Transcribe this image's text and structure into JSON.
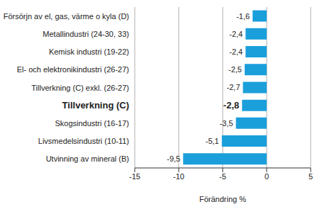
{
  "chart_data": {
    "type": "bar",
    "orientation": "horizontal",
    "categories": [
      "Försörjn av el, gas, värme o kyla (D)",
      "Metallindustri (24-30, 33)",
      "Kemisk industri (19-22)",
      "El- och elektronikindustri (26-27)",
      "Tillverkning (C) exkl. (26-27)",
      "Tillverkning (C)",
      "Skogsindustri (16-17)",
      "Livsmedelsindustri (10-11)",
      "Utvinning av mineral (B)"
    ],
    "values": [
      -1.6,
      -2.4,
      -2.4,
      -2.5,
      -2.7,
      -2.8,
      -3.5,
      -5.1,
      -9.5
    ],
    "value_labels": [
      "-1,6",
      "-2,4",
      "-2,4",
      "-2,5",
      "-2,7",
      "-2,8",
      "-3,5",
      "-5,1",
      "-9,5"
    ],
    "data_labels": true,
    "color": "#1a9fdb",
    "xlim": [
      -15,
      5
    ],
    "xticks": [
      -15,
      -10,
      -5,
      0,
      5
    ],
    "xlabel": "Förändring %",
    "grid": true
  }
}
